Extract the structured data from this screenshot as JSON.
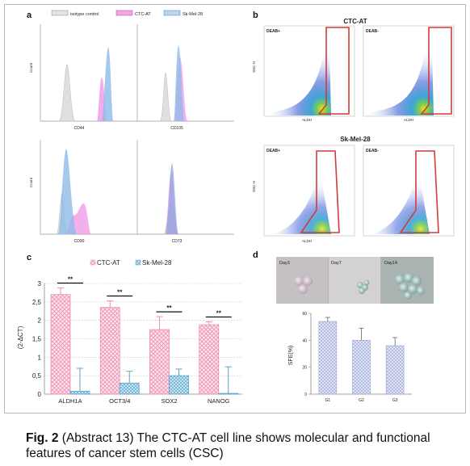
{
  "panels": {
    "a": {
      "letter": "a",
      "legend": [
        "isotype control",
        "CTC-AT",
        "Sk-Mel-28"
      ],
      "colors": {
        "isotype": "#c8c8c8",
        "ctc": "#e57ed9",
        "skmel": "#8fb8e6"
      },
      "ylabel": "Count",
      "markers": [
        "CD44",
        "CD105",
        "CD90",
        "CD73"
      ]
    },
    "b": {
      "letter": "b",
      "group1": "CTC-AT",
      "group2": "Sk-Mel-28",
      "gates": [
        "DEAB+",
        "DEAB-"
      ],
      "xlabel": "ALDH",
      "ylabel": "SSC-H",
      "gate_color": "#d43a3a"
    },
    "c": {
      "letter": "c",
      "legend": [
        "CTC-AT",
        "Sk-Mel-28"
      ],
      "sig": "**"
    },
    "d": {
      "letter": "d",
      "days": [
        "Day3",
        "Day7",
        "Day14"
      ],
      "ylabel": "SFE(%)"
    }
  },
  "chart_data": [
    {
      "type": "bar",
      "panel": "c",
      "categories": [
        "ALDH1A",
        "OCT3/4",
        "SOX2",
        "NANOG"
      ],
      "ylabel": "(2-ΔCT)",
      "ylim": [
        0,
        3
      ],
      "yticks": [
        "0",
        "0,5",
        "1",
        "1,5",
        "2",
        "2,5",
        "3"
      ],
      "series": [
        {
          "name": "CTC-AT",
          "values": [
            2.7,
            2.35,
            1.75,
            1.88
          ],
          "err": [
            0.18,
            0.18,
            0.35,
            0.08
          ],
          "color": "#ee8fae"
        },
        {
          "name": "Sk-Mel-28",
          "values": [
            0.08,
            0.3,
            0.5,
            0.02
          ],
          "err": [
            0.62,
            0.32,
            0.18,
            0.72
          ],
          "color": "#6ab0cf"
        }
      ]
    },
    {
      "type": "bar",
      "panel": "d",
      "categories": [
        "G1",
        "G2",
        "G3"
      ],
      "ylabel": "SFE(%)",
      "ylim": [
        0,
        60
      ],
      "yticks": [
        "0",
        "20",
        "40",
        "60"
      ],
      "values": [
        54,
        40,
        36
      ],
      "err": [
        3,
        9,
        6
      ],
      "color": "#aab4dc"
    }
  ],
  "caption": {
    "label": "Fig. 2",
    "text": " (Abstract 13) The CTC-AT cell line shows molecular and functional features of cancer stem cells (CSC)"
  }
}
